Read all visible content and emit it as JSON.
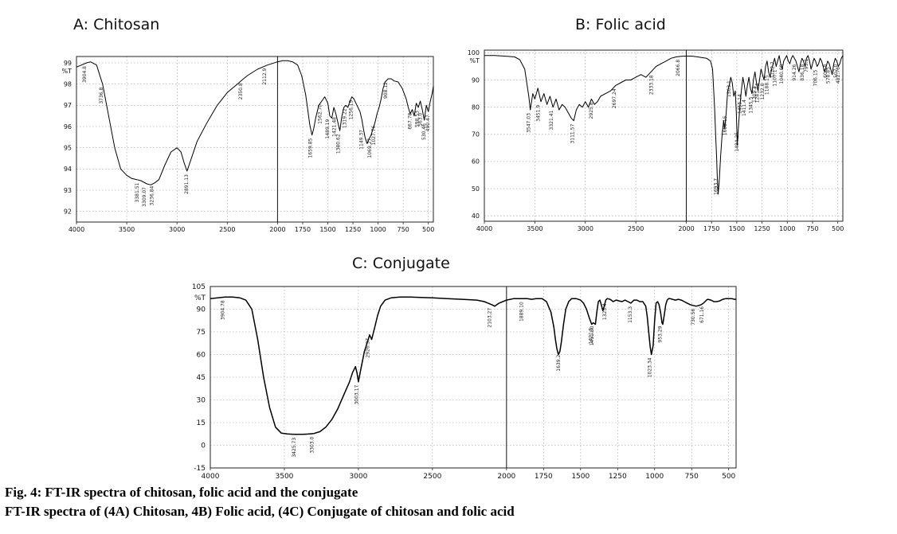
{
  "figure": {
    "caption_line1": "Fig. 4: FT-IR spectra of chitosan, folic acid and the conjugate",
    "caption_line2": "FT-IR spectra of (4A) Chitosan, 4B) Folic acid, (4C) Conjugate of chitosan and folic acid"
  },
  "chart_data": [
    {
      "id": "A",
      "type": "line",
      "title": "A:  Chitosan",
      "ylabel": "%T",
      "xlim": [
        4000,
        450
      ],
      "ylim": [
        91.5,
        99.3
      ],
      "x_ticks": [
        4000,
        3500,
        3000,
        2500,
        2000,
        1750,
        1500,
        1250,
        1000,
        750,
        500
      ],
      "y_ticks": [
        92,
        93,
        94,
        95,
        96,
        97,
        98,
        99
      ],
      "grid": true,
      "vertical_marker": 2000,
      "series": [
        {
          "color": "#000000",
          "x": [
            4000,
            3950,
            3900,
            3860,
            3800,
            3740,
            3680,
            3620,
            3560,
            3500,
            3450,
            3400,
            3360,
            3300,
            3260,
            3220,
            3180,
            3120,
            3060,
            3000,
            2960,
            2930,
            2900,
            2850,
            2800,
            2700,
            2600,
            2500,
            2400,
            2350,
            2300,
            2200,
            2100,
            2000,
            1950,
            1900,
            1850,
            1800,
            1760,
            1720,
            1700,
            1680,
            1658,
            1640,
            1620,
            1590,
            1560,
            1530,
            1500,
            1480,
            1460,
            1440,
            1420,
            1400,
            1380,
            1360,
            1340,
            1320,
            1300,
            1280,
            1260,
            1240,
            1220,
            1200,
            1180,
            1160,
            1150,
            1130,
            1110,
            1090,
            1070,
            1050,
            1030,
            1010,
            990,
            970,
            950,
            930,
            900,
            870,
            840,
            800,
            760,
            720,
            700,
            680,
            660,
            640,
            620,
            600,
            580,
            560,
            540,
            520,
            500,
            480,
            460,
            450
          ],
          "y": [
            98.8,
            98.9,
            99.0,
            99.05,
            98.9,
            98.0,
            96.5,
            95.0,
            94.0,
            93.7,
            93.55,
            93.5,
            93.45,
            93.3,
            93.25,
            93.35,
            93.5,
            94.2,
            94.8,
            95.0,
            94.8,
            94.3,
            93.9,
            94.6,
            95.3,
            96.2,
            97.0,
            97.6,
            98.0,
            98.2,
            98.4,
            98.7,
            98.9,
            99.05,
            99.1,
            99.1,
            99.05,
            98.9,
            98.4,
            97.5,
            96.8,
            96.1,
            95.6,
            95.9,
            96.4,
            97.0,
            97.2,
            97.4,
            97.1,
            96.5,
            96.4,
            96.9,
            96.6,
            96.2,
            95.8,
            96.5,
            96.9,
            97.0,
            96.9,
            97.2,
            97.4,
            97.3,
            97.1,
            96.9,
            96.7,
            96.3,
            96.0,
            95.5,
            95.2,
            95.4,
            95.6,
            95.9,
            96.2,
            96.6,
            96.9,
            97.3,
            97.8,
            98.1,
            98.25,
            98.25,
            98.15,
            98.1,
            97.8,
            97.3,
            96.9,
            96.6,
            96.8,
            96.5,
            97.1,
            96.9,
            97.2,
            96.8,
            96.3,
            97.0,
            96.7,
            97.2,
            97.6,
            97.9
          ]
        }
      ],
      "peak_labels": [
        "3904.8",
        "3736.8",
        "3381.51",
        "3309.07",
        "3236.84",
        "2891.13",
        "2350.8",
        "2112.9",
        "1659.85",
        "1562.70",
        "1489.19",
        "1421.48",
        "1380.62",
        "1319.22",
        "1256.19",
        "1149.37",
        "1069.27",
        "1027.76",
        "908.12",
        "667.78",
        "598.53",
        "563.0",
        "530.46",
        "490.47"
      ]
    },
    {
      "id": "B",
      "type": "line",
      "title": "B: Folic acid",
      "ylabel": "%T",
      "xlim": [
        4000,
        450
      ],
      "ylim": [
        38,
        101
      ],
      "x_ticks": [
        4000,
        3500,
        3000,
        2500,
        2000,
        1750,
        1500,
        1250,
        1000,
        750,
        500
      ],
      "y_ticks": [
        40,
        50,
        60,
        70,
        80,
        90,
        100
      ],
      "grid": true,
      "vertical_marker": 2000,
      "series": [
        {
          "color": "#000000",
          "x": [
            4000,
            3900,
            3800,
            3700,
            3650,
            3600,
            3560,
            3545,
            3520,
            3500,
            3470,
            3440,
            3410,
            3380,
            3350,
            3320,
            3290,
            3260,
            3230,
            3200,
            3170,
            3140,
            3115,
            3090,
            3060,
            3030,
            3000,
            2970,
            2940,
            2910,
            2880,
            2850,
            2800,
            2750,
            2700,
            2650,
            2600,
            2550,
            2500,
            2450,
            2400,
            2350,
            2300,
            2250,
            2200,
            2150,
            2100,
            2050,
            2000,
            1950,
            1900,
            1850,
            1800,
            1760,
            1740,
            1720,
            1710,
            1700,
            1694,
            1685,
            1675,
            1660,
            1645,
            1630,
            1620,
            1605,
            1590,
            1575,
            1560,
            1545,
            1530,
            1515,
            1505,
            1495,
            1485,
            1470,
            1455,
            1440,
            1425,
            1410,
            1395,
            1380,
            1365,
            1350,
            1335,
            1320,
            1305,
            1290,
            1275,
            1260,
            1245,
            1230,
            1215,
            1200,
            1185,
            1170,
            1155,
            1140,
            1125,
            1110,
            1095,
            1080,
            1065,
            1050,
            1035,
            1020,
            1005,
            990,
            975,
            960,
            945,
            930,
            915,
            900,
            885,
            870,
            855,
            840,
            825,
            810,
            795,
            780,
            765,
            750,
            735,
            720,
            705,
            690,
            675,
            660,
            645,
            630,
            615,
            600,
            585,
            570,
            555,
            540,
            525,
            510,
            495,
            480,
            465,
            450
          ],
          "y": [
            99.0,
            99.0,
            98.8,
            98.5,
            97.5,
            94.0,
            84.0,
            79.0,
            85.0,
            83.0,
            87.0,
            82.0,
            85.0,
            81.0,
            84.0,
            80.0,
            83.0,
            79.0,
            81.0,
            80.0,
            78.0,
            76.0,
            75.0,
            79.0,
            81.0,
            80.0,
            82.0,
            80.0,
            83.0,
            81.0,
            82.0,
            84.0,
            85.0,
            86.0,
            88.0,
            89.0,
            90.0,
            90.0,
            91.0,
            92.0,
            91.0,
            93.0,
            95.0,
            96.0,
            97.0,
            98.0,
            98.5,
            98.7,
            98.8,
            98.8,
            98.6,
            98.3,
            98.0,
            97.0,
            94.0,
            80.0,
            70.0,
            62.0,
            55.0,
            48.0,
            52.0,
            62.0,
            70.0,
            75.0,
            72.0,
            78.0,
            86.0,
            88.0,
            91.0,
            89.0,
            84.0,
            86.0,
            78.0,
            66.0,
            72.0,
            80.0,
            86.0,
            91.0,
            88.0,
            84.0,
            88.0,
            91.0,
            87.0,
            85.0,
            90.0,
            93.0,
            89.0,
            86.0,
            90.0,
            94.0,
            92.0,
            90.0,
            95.0,
            97.0,
            93.0,
            91.0,
            94.0,
            96.0,
            98.0,
            95.0,
            97.0,
            99.0,
            96.0,
            94.0,
            97.0,
            98.0,
            99.0,
            97.0,
            96.0,
            98.0,
            99.0,
            98.0,
            97.0,
            95.0,
            93.0,
            96.0,
            98.0,
            97.0,
            95.0,
            98.0,
            99.0,
            97.0,
            94.0,
            96.0,
            98.0,
            97.0,
            95.0,
            96.0,
            98.0,
            97.0,
            95.0,
            93.0,
            95.0,
            97.0,
            96.0,
            94.0,
            92.0,
            96.0,
            98.0,
            97.0,
            95.0,
            96.0,
            98.0,
            99.0
          ]
        }
      ],
      "peak_labels": [
        "3547.03",
        "3451.9",
        "3321.41",
        "3111.57",
        "2925.8",
        "2697.24",
        "2333.18",
        "2066.8",
        "1693.7",
        "1600.15",
        "1563.1",
        "1484.25",
        "1455.14",
        "1411.4",
        "1345.5",
        "1309.4",
        "1281.14",
        "1232.8",
        "1188.15",
        "1132.2",
        "1107.1",
        "1040.08",
        "914.26",
        "836.18",
        "795.1",
        "706.15",
        "606.8",
        "578.85",
        "507.0",
        "482.76"
      ]
    },
    {
      "id": "C",
      "type": "line",
      "title": "C:  Conjugate",
      "ylabel": "%T",
      "xlim": [
        4000,
        450
      ],
      "ylim": [
        -15,
        105
      ],
      "x_ticks": [
        4000,
        3500,
        3000,
        2500,
        2000,
        1750,
        1500,
        1250,
        1000,
        750,
        500
      ],
      "y_ticks": [
        -15,
        0,
        15,
        30,
        45,
        60,
        75,
        90,
        105
      ],
      "grid": true,
      "vertical_marker": 2000,
      "series": [
        {
          "color": "#000000",
          "x": [
            4000,
            3950,
            3900,
            3850,
            3800,
            3760,
            3720,
            3680,
            3640,
            3600,
            3560,
            3520,
            3480,
            3450,
            3420,
            3380,
            3340,
            3300,
            3260,
            3220,
            3180,
            3140,
            3100,
            3060,
            3040,
            3020,
            3010,
            3000,
            2980,
            2960,
            2940,
            2925,
            2910,
            2890,
            2870,
            2850,
            2820,
            2780,
            2720,
            2650,
            2580,
            2500,
            2400,
            2300,
            2200,
            2150,
            2100,
            2080,
            2050,
            2000,
            1950,
            1900,
            1860,
            1830,
            1800,
            1760,
            1730,
            1700,
            1680,
            1670,
            1660,
            1650,
            1640,
            1630,
            1615,
            1600,
            1580,
            1560,
            1530,
            1500,
            1480,
            1460,
            1440,
            1425,
            1415,
            1400,
            1390,
            1380,
            1370,
            1360,
            1350,
            1340,
            1330,
            1320,
            1300,
            1280,
            1260,
            1240,
            1220,
            1200,
            1180,
            1160,
            1140,
            1120,
            1100,
            1080,
            1060,
            1050,
            1040,
            1030,
            1022,
            1010,
            1000,
            990,
            980,
            970,
            960,
            950,
            945,
            935,
            925,
            915,
            905,
            895,
            880,
            860,
            840,
            820,
            800,
            780,
            760,
            740,
            720,
            700,
            685,
            670,
            660,
            650,
            640,
            620,
            600,
            580,
            560,
            540,
            520,
            500,
            480,
            460,
            450
          ],
          "y": [
            97.0,
            97.5,
            98.0,
            98.0,
            97.5,
            96.0,
            90.0,
            70.0,
            45.0,
            25.0,
            12.0,
            8.0,
            7.5,
            7.3,
            7.2,
            7.2,
            7.4,
            7.8,
            9.0,
            12.0,
            17.0,
            24.0,
            33.0,
            42.0,
            48.0,
            52.0,
            48.0,
            42.0,
            52.0,
            62.0,
            68.0,
            73.0,
            70.0,
            78.0,
            86.0,
            92.0,
            96.0,
            97.5,
            98.0,
            98.0,
            97.8,
            97.5,
            97.0,
            96.5,
            96.0,
            95.0,
            93.0,
            92.0,
            94.0,
            96.0,
            97.0,
            97.0,
            97.0,
            96.5,
            97.0,
            97.0,
            95.0,
            88.0,
            78.0,
            70.0,
            64.0,
            60.0,
            62.0,
            68.0,
            80.0,
            90.0,
            95.0,
            97.0,
            97.0,
            96.0,
            94.0,
            90.0,
            84.0,
            80.0,
            81.0,
            80.0,
            88.0,
            95.0,
            96.0,
            93.0,
            89.0,
            92.0,
            96.0,
            97.0,
            96.5,
            95.0,
            96.0,
            95.5,
            95.0,
            96.0,
            95.0,
            94.0,
            96.0,
            96.0,
            95.0,
            95.0,
            92.0,
            85.0,
            75.0,
            65.0,
            60.0,
            66.0,
            82.0,
            94.0,
            95.0,
            93.0,
            88.0,
            81.0,
            80.0,
            86.0,
            93.0,
            96.0,
            97.0,
            97.0,
            96.5,
            96.0,
            96.5,
            96.0,
            95.0,
            94.0,
            93.0,
            92.5,
            92.0,
            92.5,
            93.0,
            94.0,
            95.0,
            96.0,
            96.5,
            96.0,
            95.0,
            95.0,
            95.5,
            96.5,
            97.0,
            97.0,
            97.0,
            96.5,
            96.5
          ]
        }
      ],
      "peak_labels": [
        "3904.78",
        "3425.73",
        "3303.0",
        "3003.17",
        "2926.37",
        "2103.27",
        "1889.10",
        "1639.2",
        "1421.5",
        "1411.80",
        "1325.4",
        "1153.3",
        "1023.34",
        "953.29",
        "730.56",
        "671.16"
      ]
    }
  ]
}
